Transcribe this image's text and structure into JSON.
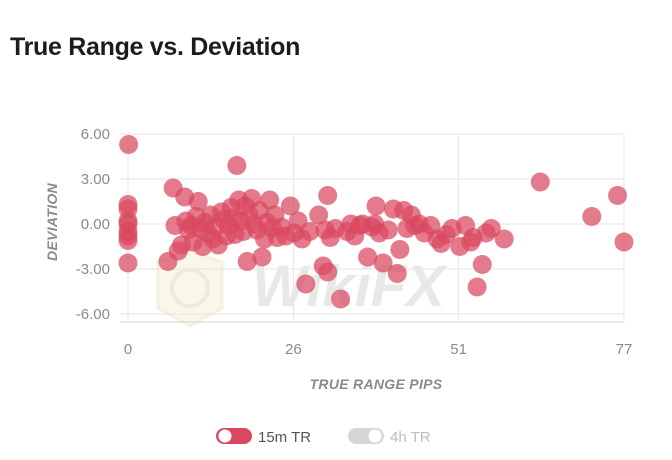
{
  "header": {
    "title": "True Range vs. Deviation"
  },
  "chart_data": {
    "type": "scatter",
    "xlabel": "TRUE RANGE PIPS",
    "ylabel": "DEVIATION",
    "xlim": [
      0,
      77
    ],
    "ylim": [
      -6.0,
      6.0
    ],
    "x_ticks": [
      "0",
      "26",
      "51",
      "77"
    ],
    "x_tick_values": [
      0,
      25.67,
      51.33,
      77
    ],
    "y_ticks": [
      "6.00",
      "3.00",
      "0.00",
      "-3.00",
      "-6.00"
    ],
    "y_tick_values": [
      6,
      3,
      0,
      -3,
      -6
    ],
    "grid": true,
    "legend_position": "bottom",
    "series": [
      {
        "name": "15m TR",
        "color": "#d9485f",
        "active": true,
        "points": [
          [
            0.1,
            5.3
          ],
          [
            0,
            1.3
          ],
          [
            0,
            1.0
          ],
          [
            0,
            0.2
          ],
          [
            0,
            0
          ],
          [
            0,
            -0.5
          ],
          [
            0,
            -0.8
          ],
          [
            0,
            -1.1
          ],
          [
            0,
            -2.6
          ],
          [
            6.2,
            -2.5
          ],
          [
            7.0,
            2.4
          ],
          [
            7.3,
            -0.1
          ],
          [
            7.8,
            -1.8
          ],
          [
            8.3,
            -1.4
          ],
          [
            8.8,
            1.8
          ],
          [
            9.0,
            0.2
          ],
          [
            9.4,
            -0.4
          ],
          [
            9.8,
            -0.1
          ],
          [
            10.1,
            -1.2
          ],
          [
            10.6,
            0.5
          ],
          [
            10.9,
            1.5
          ],
          [
            11.2,
            -0.3
          ],
          [
            11.6,
            -1.5
          ],
          [
            12.0,
            0.1
          ],
          [
            12.4,
            -0.6
          ],
          [
            12.8,
            0.6
          ],
          [
            13.2,
            -1.0
          ],
          [
            13.6,
            -0.2
          ],
          [
            14.0,
            -1.4
          ],
          [
            14.5,
            0.8
          ],
          [
            14.9,
            0.3
          ],
          [
            15.3,
            -0.8
          ],
          [
            15.6,
            -0.1
          ],
          [
            16.0,
            1.1
          ],
          [
            16.3,
            0.4
          ],
          [
            16.6,
            -0.7
          ],
          [
            16.9,
            3.9
          ],
          [
            17.2,
            1.6
          ],
          [
            17.5,
            0.2
          ],
          [
            17.9,
            -0.5
          ],
          [
            18.2,
            1.2
          ],
          [
            18.5,
            -2.5
          ],
          [
            18.8,
            0.6
          ],
          [
            19.2,
            1.7
          ],
          [
            19.6,
            0
          ],
          [
            20.0,
            -0.4
          ],
          [
            20.4,
            0.9
          ],
          [
            20.8,
            -2.2
          ],
          [
            21.2,
            -1.0
          ],
          [
            21.6,
            0.1
          ],
          [
            22.0,
            1.6
          ],
          [
            22.4,
            -0.3
          ],
          [
            22.8,
            0.6
          ],
          [
            23.2,
            -0.9
          ],
          [
            23.8,
            -0.2
          ],
          [
            24.5,
            -0.8
          ],
          [
            25.2,
            1.2
          ],
          [
            25.8,
            -0.6
          ],
          [
            26.4,
            0.2
          ],
          [
            27.0,
            -1.0
          ],
          [
            27.6,
            -4.0
          ],
          [
            28.2,
            -0.5
          ],
          [
            29.6,
            0.6
          ],
          [
            30.3,
            -2.8
          ],
          [
            30.6,
            -0.4
          ],
          [
            31.0,
            -3.2
          ],
          [
            31.4,
            -0.9
          ],
          [
            31.0,
            1.9
          ],
          [
            32.2,
            -0.3
          ],
          [
            33.0,
            -5.0
          ],
          [
            34.0,
            -0.5
          ],
          [
            34.6,
            0
          ],
          [
            35.2,
            -0.8
          ],
          [
            36.0,
            -0.1
          ],
          [
            36.4,
            0
          ],
          [
            37.2,
            -2.2
          ],
          [
            37.9,
            -0.2
          ],
          [
            38.3,
            0
          ],
          [
            38.5,
            1.2
          ],
          [
            39.0,
            -0.6
          ],
          [
            39.6,
            -2.6
          ],
          [
            40.4,
            -0.4
          ],
          [
            41.2,
            1.0
          ],
          [
            41.8,
            -3.3
          ],
          [
            42.2,
            -1.7
          ],
          [
            42.8,
            0.9
          ],
          [
            43.3,
            -0.3
          ],
          [
            44.0,
            0.6
          ],
          [
            44.5,
            -0.1
          ],
          [
            45.2,
            0
          ],
          [
            46.0,
            -0.6
          ],
          [
            47.0,
            -0.1
          ],
          [
            48.0,
            -1.0
          ],
          [
            48.6,
            -1.3
          ],
          [
            49.4,
            -0.7
          ],
          [
            50.3,
            -0.3
          ],
          [
            51.5,
            -1.5
          ],
          [
            52.4,
            -0.1
          ],
          [
            53.2,
            -1.2
          ],
          [
            53.6,
            -0.9
          ],
          [
            54.2,
            -4.2
          ],
          [
            55.0,
            -2.7
          ],
          [
            55.6,
            -0.6
          ],
          [
            56.4,
            -0.3
          ],
          [
            58.4,
            -1.0
          ],
          [
            64.0,
            2.8
          ],
          [
            72.0,
            0.5
          ],
          [
            76.0,
            1.9
          ],
          [
            77.0,
            -1.2
          ]
        ]
      },
      {
        "name": "4h TR",
        "color": "#d6d6d6",
        "active": false,
        "points": []
      }
    ]
  },
  "watermark": {
    "text": "WikiFX"
  }
}
